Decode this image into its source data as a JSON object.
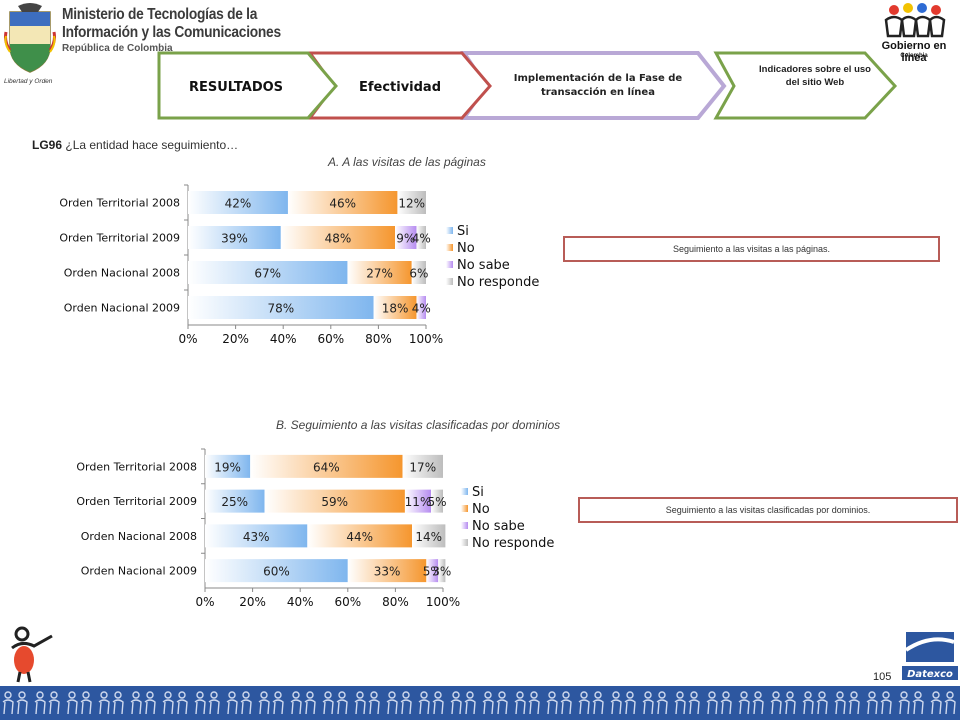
{
  "header": {
    "ministry_line1": "Ministerio de Tecnologías de la",
    "ministry_line2": "Información y las Comunicaciones",
    "ministry_line3": "República de Colombia",
    "crest_motto": "Libertad y Orden",
    "gel_name": "Gobierno en línea",
    "gel_country": "Colombia"
  },
  "nav": {
    "tab1": "RESULTADOS",
    "tab2": "Efectividad",
    "tab3": "Implementación de la Fase de transacción en línea",
    "tab4": "Indicadores sobre el uso del sitio Web"
  },
  "question": {
    "code": "LG96",
    "text": "¿La entidad hace seguimiento…"
  },
  "notes": {
    "a": "Seguimiento a las visitas a las páginas.",
    "b": "Seguimiento a las visitas clasificadas por dominios."
  },
  "footer": {
    "page_number": "105",
    "brand": "Datexco"
  },
  "colors": {
    "si": "#7fb6ee",
    "no": "#f5962e",
    "no_sabe": "#b68cf0",
    "no_responde": "#bdbdbd"
  },
  "chart_data": [
    {
      "type": "bar",
      "orientation": "horizontal",
      "stacked": true,
      "title": "A. A las visitas de las páginas",
      "categories": [
        "Orden Territorial 2008",
        "Orden Territorial 2009",
        "Orden Nacional 2008",
        "Orden Nacional 2009"
      ],
      "series": [
        {
          "name": "Si",
          "values": [
            42,
            39,
            67,
            78
          ],
          "labels": [
            "42%",
            "39%",
            "67%",
            "78%"
          ]
        },
        {
          "name": "No",
          "values": [
            46,
            48,
            27,
            18
          ],
          "labels": [
            "46%",
            "48%",
            "27%",
            "18%"
          ]
        },
        {
          "name": "No sabe",
          "values": [
            0,
            9,
            0,
            4
          ],
          "labels": [
            "",
            "9%",
            "",
            "4%"
          ]
        },
        {
          "name": "No responde",
          "values": [
            12,
            4,
            6,
            0
          ],
          "labels": [
            "12%",
            "4%",
            "6%",
            ""
          ]
        }
      ],
      "xticks": [
        "0%",
        "20%",
        "40%",
        "60%",
        "80%",
        "100%"
      ],
      "xlim": [
        0,
        100
      ],
      "legend": "right"
    },
    {
      "type": "bar",
      "orientation": "horizontal",
      "stacked": true,
      "title": "B. Seguimiento a las visitas clasificadas por dominios",
      "categories": [
        "Orden Territorial 2008",
        "Orden Territorial 2009",
        "Orden Nacional 2008",
        "Orden Nacional 2009"
      ],
      "series": [
        {
          "name": "Si",
          "values": [
            19,
            25,
            43,
            60
          ],
          "labels": [
            "19%",
            "25%",
            "43%",
            "60%"
          ]
        },
        {
          "name": "No",
          "values": [
            64,
            59,
            44,
            33
          ],
          "labels": [
            "64%",
            "59%",
            "44%",
            "33%"
          ]
        },
        {
          "name": "No sabe",
          "values": [
            0,
            11,
            0,
            5
          ],
          "labels": [
            "",
            "11%",
            "",
            "5%"
          ]
        },
        {
          "name": "No responde",
          "values": [
            17,
            5,
            14,
            3
          ],
          "labels": [
            "17%",
            "5%",
            "14%",
            "3%"
          ]
        }
      ],
      "xticks": [
        "0%",
        "20%",
        "40%",
        "60%",
        "80%",
        "100%"
      ],
      "xlim": [
        0,
        100
      ],
      "legend": "right"
    }
  ]
}
